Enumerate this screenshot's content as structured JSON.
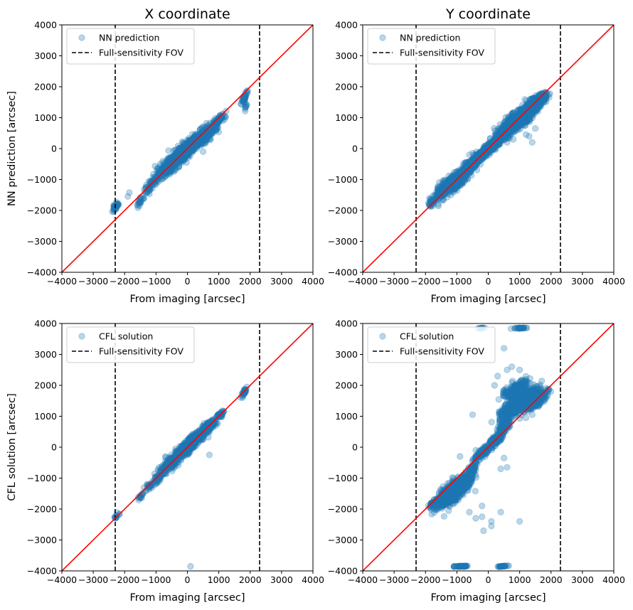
{
  "chart_data": [
    {
      "type": "scatter",
      "title": "X coordinate",
      "xlabel": "From imaging [arcsec]",
      "ylabel": "NN prediction [arcsec]",
      "xlim": [
        -4000,
        4000
      ],
      "ylim": [
        -4000,
        4000
      ],
      "xticks": [
        "−4000",
        "−3000",
        "−2000",
        "−1000",
        "0",
        "1000",
        "2000",
        "3000",
        "4000"
      ],
      "yticks": [
        "−4000",
        "−3000",
        "−2000",
        "−1000",
        "0",
        "1000",
        "2000",
        "3000",
        "4000"
      ],
      "legend_position": "upper-left",
      "series": [
        {
          "name": "NN prediction",
          "color": "#1f77b4",
          "clusters": [
            [
              -2280,
              -1880,
              70,
              120,
              25
            ],
            [
              -2260,
              -1820,
              60,
              80,
              12
            ],
            [
              -1500,
              -1700,
              70,
              120,
              20
            ],
            [
              -1250,
              -1250,
              120,
              200,
              35
            ],
            [
              -1000,
              -1000,
              90,
              120,
              25
            ],
            [
              -600,
              -600,
              250,
              250,
              240
            ],
            [
              -200,
              -200,
              250,
              220,
              350
            ],
            [
              150,
              130,
              250,
              200,
              350
            ],
            [
              600,
              500,
              250,
              230,
              220
            ],
            [
              1000,
              950,
              120,
              120,
              60
            ],
            [
              1820,
              1650,
              60,
              140,
              35
            ],
            [
              1850,
              1350,
              30,
              80,
              8
            ]
          ],
          "points": [
            [
              -1900,
              -1550
            ],
            [
              -1850,
              -1420
            ],
            [
              -1200,
              -1300
            ],
            [
              -700,
              -900
            ],
            [
              -300,
              -400
            ],
            [
              300,
              400
            ],
            [
              500,
              -100
            ],
            [
              800,
              500
            ]
          ]
        },
        {
          "name": "Full-sensitivity FOV",
          "color": "#000000",
          "style": "dashed",
          "x": [
            -2300,
            2300
          ]
        },
        {
          "name": "",
          "color": "#ff0000",
          "style": "solid",
          "x": [
            -4000,
            4000
          ],
          "y": [
            -4000,
            4000
          ]
        }
      ]
    },
    {
      "type": "scatter",
      "title": "Y coordinate",
      "xlabel": "From imaging [arcsec]",
      "ylabel": "",
      "xlim": [
        -4000,
        4000
      ],
      "ylim": [
        -4000,
        4000
      ],
      "xticks": [
        "−4000",
        "−3000",
        "−2000",
        "−1000",
        "0",
        "1000",
        "2000",
        "3000",
        "4000"
      ],
      "yticks": [
        "−4000",
        "−3000",
        "−2000",
        "−1000",
        "0",
        "1000",
        "2000",
        "3000",
        "4000"
      ],
      "legend_position": "upper-left",
      "series": [
        {
          "name": "NN prediction",
          "color": "#1f77b4",
          "clusters": [
            [
              -1800,
              -1750,
              80,
              100,
              30
            ],
            [
              -1500,
              -1450,
              150,
              130,
              80
            ],
            [
              -1100,
              -1100,
              280,
              260,
              500
            ],
            [
              -600,
              -580,
              180,
              170,
              300
            ],
            [
              -250,
              -230,
              150,
              150,
              200
            ],
            [
              150,
              120,
              180,
              170,
              250
            ],
            [
              550,
              550,
              180,
              200,
              300
            ],
            [
              900,
              900,
              300,
              270,
              600
            ],
            [
              1400,
              1350,
              250,
              220,
              400
            ],
            [
              1650,
              1600,
              150,
              130,
              150
            ]
          ],
          "points": [
            [
              -1700,
              -1500
            ],
            [
              -1650,
              -1400
            ],
            [
              -1450,
              -1300
            ],
            [
              -600,
              -200
            ],
            [
              -500,
              -150
            ],
            [
              1200,
              450
            ],
            [
              1300,
              400
            ],
            [
              1400,
              200
            ],
            [
              1500,
              650
            ],
            [
              600,
              200
            ],
            [
              800,
              300
            ],
            [
              -1600,
              -1800
            ]
          ]
        },
        {
          "name": "Full-sensitivity FOV",
          "color": "#000000",
          "style": "dashed",
          "x": [
            -2300,
            2300
          ]
        },
        {
          "name": "",
          "color": "#ff0000",
          "style": "solid",
          "x": [
            -4000,
            4000
          ],
          "y": [
            -4000,
            4000
          ]
        }
      ]
    },
    {
      "type": "scatter",
      "title": "",
      "xlabel": "From imaging [arcsec]",
      "ylabel": "CFL solution [arcsec]",
      "xlim": [
        -4000,
        4000
      ],
      "ylim": [
        -4000,
        4000
      ],
      "xticks": [
        "−4000",
        "−3000",
        "−2000",
        "−1000",
        "0",
        "1000",
        "2000",
        "3000",
        "4000"
      ],
      "yticks": [
        "−4000",
        "−3000",
        "−2000",
        "−1000",
        "0",
        "1000",
        "2000",
        "3000",
        "4000"
      ],
      "legend_position": "upper-left",
      "series": [
        {
          "name": "CFL solution",
          "color": "#1f77b4",
          "clusters": [
            [
              -2250,
              -2220,
              60,
              80,
              12
            ],
            [
              -1500,
              -1600,
              60,
              100,
              15
            ],
            [
              -1200,
              -1250,
              100,
              110,
              25
            ],
            [
              -900,
              -950,
              120,
              150,
              50
            ],
            [
              -500,
              -500,
              200,
              180,
              220
            ],
            [
              -100,
              -80,
              200,
              170,
              300
            ],
            [
              300,
              320,
              200,
              170,
              280
            ],
            [
              700,
              700,
              150,
              150,
              150
            ],
            [
              1050,
              1050,
              80,
              80,
              40
            ],
            [
              1820,
              1800,
              50,
              100,
              30
            ]
          ],
          "points": [
            [
              -1300,
              -1400
            ],
            [
              -900,
              -650
            ],
            [
              -700,
              -300
            ],
            [
              700,
              -250
            ],
            [
              100,
              -3850
            ],
            [
              400,
              500
            ],
            [
              -300,
              -200
            ]
          ]
        },
        {
          "name": "Full-sensitivity FOV",
          "color": "#000000",
          "style": "dashed",
          "x": [
            -2300,
            2300
          ]
        },
        {
          "name": "",
          "color": "#ff0000",
          "style": "solid",
          "x": [
            -4000,
            4000
          ],
          "y": [
            -4000,
            4000
          ]
        }
      ]
    },
    {
      "type": "scatter",
      "title": "",
      "xlabel": "From imaging [arcsec]",
      "ylabel": "",
      "xlim": [
        -4000,
        4000
      ],
      "ylim": [
        -4000,
        4000
      ],
      "xticks": [
        "−4000",
        "−3000",
        "−2000",
        "−1000",
        "0",
        "1000",
        "2000",
        "3000",
        "4000"
      ],
      "yticks": [
        "−4000",
        "−3000",
        "−2000",
        "−1000",
        "0",
        "1000",
        "2000",
        "3000",
        "4000"
      ],
      "legend_position": "upper-left",
      "series": [
        {
          "name": "CFL solution",
          "color": "#1f77b4",
          "clusters": [
            [
              -1800,
              -1850,
              70,
              90,
              30
            ],
            [
              -1200,
              -1500,
              300,
              300,
              600
            ],
            [
              -800,
              -1200,
              200,
              250,
              300
            ],
            [
              -500,
              -700,
              100,
              150,
              60
            ],
            [
              -200,
              -200,
              150,
              150,
              120
            ],
            [
              200,
              200,
              150,
              150,
              120
            ],
            [
              500,
              700,
              150,
              300,
              150
            ],
            [
              800,
              1300,
              250,
              250,
              400
            ],
            [
              1100,
              1500,
              300,
              250,
              500
            ],
            [
              1500,
              1500,
              250,
              200,
              300
            ],
            [
              900,
              1900,
              250,
              200,
              200
            ],
            [
              -900,
              -3850,
              200,
              10,
              50
            ],
            [
              450,
              -3850,
              120,
              10,
              30
            ],
            [
              -200,
              3850,
              80,
              10,
              12
            ],
            [
              1000,
              3850,
              150,
              10,
              30
            ]
          ],
          "points": [
            [
              100,
              -2550
            ],
            [
              -200,
              -2250
            ],
            [
              100,
              -2400
            ],
            [
              -150,
              -2700
            ],
            [
              1000,
              -2400
            ],
            [
              400,
              -2100
            ],
            [
              500,
              3200
            ],
            [
              600,
              2500
            ],
            [
              750,
              2600
            ],
            [
              1000,
              2500
            ],
            [
              1050,
              1900
            ],
            [
              1200,
              2200
            ],
            [
              -900,
              -300
            ],
            [
              -400,
              -100
            ],
            [
              500,
              -350
            ],
            [
              400,
              -700
            ],
            [
              600,
              -650
            ],
            [
              -500,
              1050
            ],
            [
              1200,
              950
            ],
            [
              1400,
              1050
            ],
            [
              -200,
              -1900
            ],
            [
              -400,
              -2300
            ],
            [
              -600,
              -2100
            ],
            [
              200,
              2000
            ],
            [
              300,
              2300
            ]
          ]
        },
        {
          "name": "Full-sensitivity FOV",
          "color": "#000000",
          "style": "dashed",
          "x": [
            -2300,
            2300
          ]
        },
        {
          "name": "",
          "color": "#ff0000",
          "style": "solid",
          "x": [
            -4000,
            4000
          ],
          "y": [
            -4000,
            4000
          ]
        }
      ]
    }
  ]
}
